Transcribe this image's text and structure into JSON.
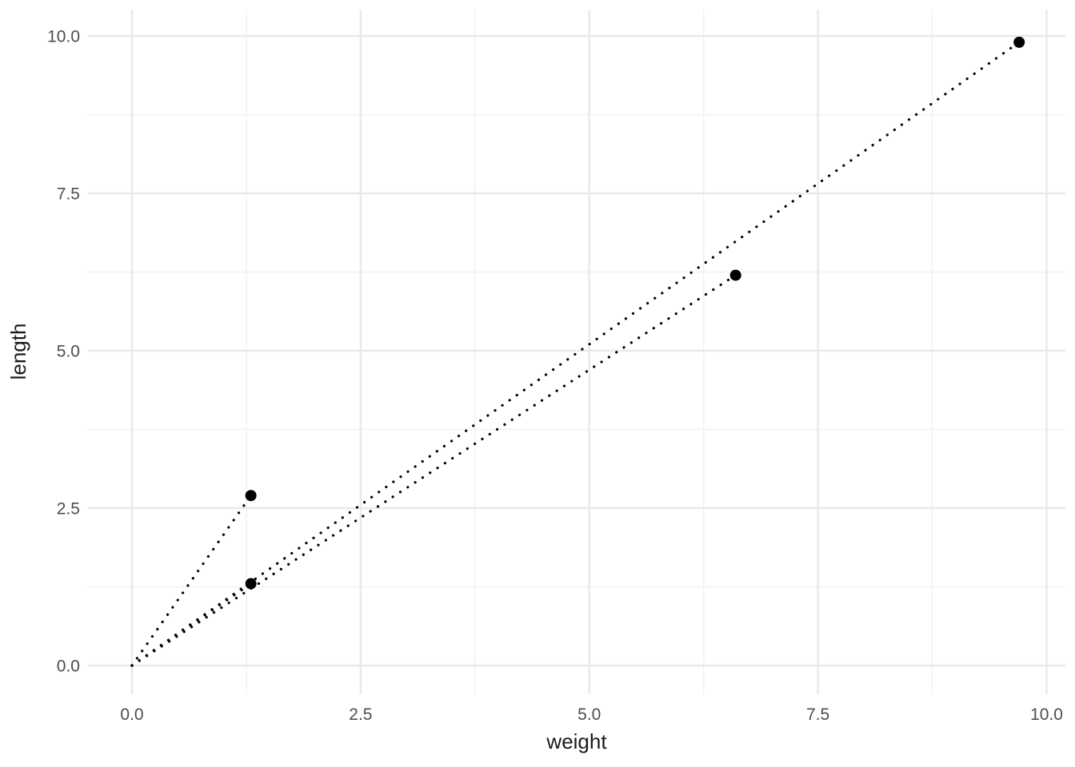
{
  "chart_data": {
    "type": "scatter",
    "xlabel": "weight",
    "ylabel": "length",
    "xlim": [
      0,
      10
    ],
    "ylim": [
      0,
      10
    ],
    "x_major_ticks": [
      0,
      2.5,
      5,
      7.5,
      10
    ],
    "x_tick_labels": [
      "0.0",
      "2.5",
      "5.0",
      "7.5",
      "10.0"
    ],
    "y_major_ticks": [
      0,
      2.5,
      5,
      7.5,
      10
    ],
    "y_tick_labels": [
      "0.0",
      "2.5",
      "5.0",
      "7.5",
      "10.0"
    ],
    "x_minor_ticks": [
      1.25,
      3.75,
      6.25,
      8.75
    ],
    "y_minor_ticks": [
      1.25,
      3.75,
      6.25,
      8.75
    ],
    "grid": "major+minor",
    "legend": false,
    "points": [
      {
        "x": 1.3,
        "y": 2.7
      },
      {
        "x": 1.3,
        "y": 1.3
      },
      {
        "x": 6.6,
        "y": 6.2
      },
      {
        "x": 9.7,
        "y": 9.9
      }
    ],
    "segments": [
      {
        "x1": 0,
        "y1": 0,
        "x2": 1.3,
        "y2": 2.7
      },
      {
        "x1": 0,
        "y1": 0,
        "x2": 1.3,
        "y2": 1.3
      },
      {
        "x1": 0,
        "y1": 0,
        "x2": 6.6,
        "y2": 6.2
      },
      {
        "x1": 0,
        "y1": 0,
        "x2": 9.7,
        "y2": 9.9
      }
    ],
    "line_style": "dotted",
    "colors": {
      "point": "#000000",
      "segment": "#000000",
      "grid_major": "#e9e9e9",
      "grid_minor": "#f1f1f1",
      "tick_label": "#4d4d4d",
      "axis_title": "#1a1a1a",
      "background": "#ffffff"
    }
  }
}
